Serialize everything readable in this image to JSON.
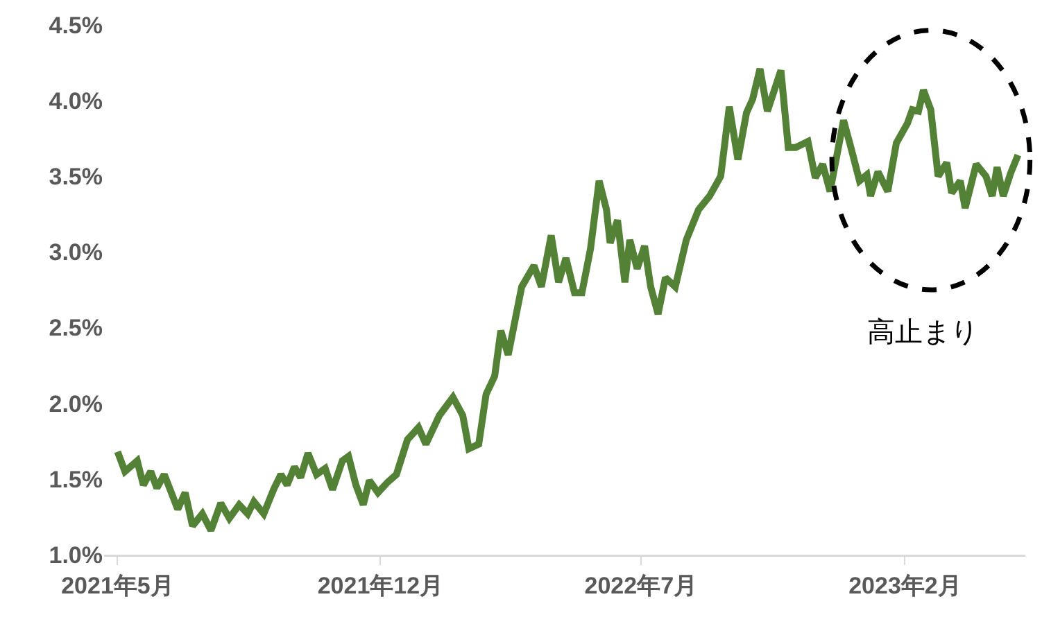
{
  "chart_data": {
    "type": "line",
    "x": [
      "2021-05-01",
      "2021-05-07",
      "2021-05-17",
      "2021-05-22",
      "2021-05-28",
      "2021-06-02",
      "2021-06-08",
      "2021-06-19",
      "2021-06-25",
      "2021-07-01",
      "2021-07-09",
      "2021-07-16",
      "2021-07-24",
      "2021-07-31",
      "2021-08-08",
      "2021-08-15",
      "2021-08-20",
      "2021-08-28",
      "2021-09-05",
      "2021-09-11",
      "2021-09-16",
      "2021-09-22",
      "2021-09-27",
      "2021-10-03",
      "2021-10-10",
      "2021-10-17",
      "2021-10-23",
      "2021-10-31",
      "2021-11-05",
      "2021-11-11",
      "2021-11-17",
      "2021-11-22",
      "2021-11-29",
      "2021-12-07",
      "2021-12-14",
      "2021-12-23",
      "2022-01-01",
      "2022-01-07",
      "2022-01-18",
      "2022-01-29",
      "2022-02-06",
      "2022-02-11",
      "2022-02-19",
      "2022-02-25",
      "2022-03-04",
      "2022-03-09",
      "2022-03-15",
      "2022-03-26",
      "2022-04-05",
      "2022-04-11",
      "2022-04-19",
      "2022-04-25",
      "2022-05-01",
      "2022-05-08",
      "2022-05-14",
      "2022-05-21",
      "2022-05-28",
      "2022-06-03",
      "2022-06-06",
      "2022-06-12",
      "2022-06-18",
      "2022-06-22",
      "2022-06-28",
      "2022-07-04",
      "2022-07-09",
      "2022-07-15",
      "2022-07-21",
      "2022-07-29",
      "2022-08-07",
      "2022-08-17",
      "2022-08-26",
      "2022-09-04",
      "2022-09-11",
      "2022-09-18",
      "2022-09-25",
      "2022-09-30",
      "2022-10-06",
      "2022-10-12",
      "2022-10-23",
      "2022-10-29",
      "2022-11-04",
      "2022-11-14",
      "2022-11-20",
      "2022-11-26",
      "2022-12-02",
      "2022-12-13",
      "2022-12-19",
      "2022-12-26",
      "2023-01-01",
      "2023-01-04",
      "2023-01-10",
      "2023-01-18",
      "2023-01-25",
      "2023-02-03",
      "2023-02-07",
      "2023-02-12",
      "2023-02-16",
      "2023-02-22",
      "2023-02-28",
      "2023-03-07",
      "2023-03-11",
      "2023-03-18",
      "2023-03-22",
      "2023-03-31",
      "2023-04-08",
      "2023-04-13",
      "2023-04-17",
      "2023-04-22",
      "2023-04-28",
      "2023-05-04"
    ],
    "series": [
      {
        "color": "#538135",
        "values": [
          1.68,
          1.55,
          1.62,
          1.46,
          1.55,
          1.44,
          1.53,
          1.3,
          1.41,
          1.19,
          1.27,
          1.16,
          1.34,
          1.24,
          1.33,
          1.27,
          1.35,
          1.27,
          1.43,
          1.53,
          1.46,
          1.58,
          1.51,
          1.67,
          1.53,
          1.57,
          1.43,
          1.62,
          1.65,
          1.46,
          1.33,
          1.49,
          1.41,
          1.48,
          1.53,
          1.76,
          1.84,
          1.73,
          1.92,
          2.04,
          1.92,
          1.7,
          1.73,
          2.06,
          2.18,
          2.48,
          2.32,
          2.77,
          2.91,
          2.77,
          3.11,
          2.8,
          2.96,
          2.73,
          2.73,
          3.02,
          3.47,
          3.28,
          3.06,
          3.21,
          2.8,
          3.08,
          2.89,
          3.04,
          2.77,
          2.59,
          2.83,
          2.77,
          3.08,
          3.28,
          3.37,
          3.5,
          3.96,
          3.61,
          3.92,
          4.01,
          4.21,
          3.93,
          4.2,
          3.69,
          3.69,
          3.73,
          3.49,
          3.58,
          3.4,
          3.87,
          3.69,
          3.47,
          3.51,
          3.37,
          3.53,
          3.4,
          3.72,
          3.85,
          3.94,
          3.93,
          4.07,
          3.94,
          3.5,
          3.59,
          3.39,
          3.47,
          3.29,
          3.58,
          3.5,
          3.37,
          3.56,
          3.37,
          3.52,
          3.64
        ]
      }
    ],
    "xlim": [
      "2021-04-20",
      "2023-05-10"
    ],
    "xticks": [
      {
        "value": "2021-05-01",
        "label": "2021年5月"
      },
      {
        "value": "2021-12-01",
        "label": "2021年12月"
      },
      {
        "value": "2022-07-01",
        "label": "2022年7月"
      },
      {
        "value": "2023-02-01",
        "label": "2023年2月"
      }
    ],
    "ylim": [
      1.0,
      4.5
    ],
    "yticks": [
      {
        "value": 1.0,
        "label": "1.0%"
      },
      {
        "value": 1.5,
        "label": "1.5%"
      },
      {
        "value": 2.0,
        "label": "2.0%"
      },
      {
        "value": 2.5,
        "label": "2.5%"
      },
      {
        "value": 3.0,
        "label": "3.0%"
      },
      {
        "value": 3.5,
        "label": "3.5%"
      },
      {
        "value": 4.0,
        "label": "4.0%"
      },
      {
        "value": 4.5,
        "label": "4.5%"
      }
    ],
    "marker": "none",
    "line_style": "solid",
    "annotations": [
      "高止まり"
    ]
  }
}
